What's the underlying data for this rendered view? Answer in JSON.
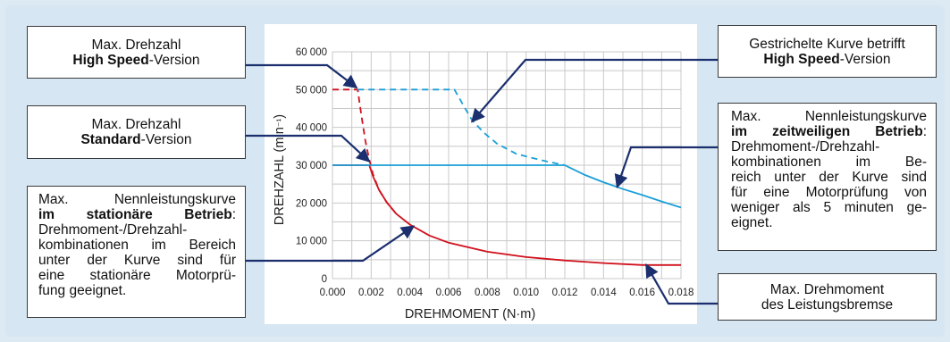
{
  "chart_data": {
    "type": "line",
    "xlabel": "DREHMOMENT (N·m)",
    "ylabel": "DREHZAHL (min⁻¹)",
    "xlim": [
      0,
      0.018
    ],
    "ylim": [
      0,
      60000
    ],
    "x_ticks": [
      "0.000",
      "0.002",
      "0.004",
      "0.006",
      "0.008",
      "0.010",
      "0.012",
      "0.014",
      "0.016",
      "0.018"
    ],
    "y_ticks": [
      "0",
      "10 000",
      "20 000",
      "30 000",
      "40 000",
      "50 000",
      "60 000"
    ],
    "grid": true,
    "series": [
      {
        "color": "#d0101c",
        "style": "solid",
        "x": [
          0,
          0.0019,
          0.0021,
          0.0024,
          0.0028,
          0.0033,
          0.004,
          0.005,
          0.006,
          0.008,
          0.01,
          0.012,
          0.014,
          0.016,
          0.018
        ],
        "y": [
          30000,
          30000,
          27000,
          23500,
          20200,
          17100,
          14300,
          11400,
          9500,
          7100,
          5700,
          4800,
          4100,
          3600,
          3600
        ]
      },
      {
        "color": "#d0101c",
        "style": "dashed",
        "x": [
          0,
          0.0013,
          0.0015,
          0.0017,
          0.0019,
          0.0021,
          0.0024,
          0.0028,
          0.0033
        ],
        "y": [
          50000,
          50000,
          43000,
          36500,
          31500,
          27500,
          23500,
          20200,
          17100
        ]
      },
      {
        "color": "#1a9fd8",
        "style": "solid",
        "x": [
          0,
          0.012,
          0.013,
          0.014,
          0.015,
          0.016,
          0.017,
          0.018
        ],
        "y": [
          30000,
          30000,
          27500,
          25500,
          23700,
          22100,
          20400,
          18800
        ]
      },
      {
        "color": "#1a9fd8",
        "style": "dashed",
        "x": [
          0.0013,
          0.0063,
          0.0068,
          0.0072,
          0.0078,
          0.0085,
          0.0095,
          0.0108,
          0.012
        ],
        "y": [
          50000,
          50000,
          45500,
          42000,
          38700,
          35700,
          33000,
          31300,
          30000
        ]
      }
    ]
  },
  "callouts": {
    "high_max": {
      "line1": "Max. Drehzahl",
      "bold": "High Speed",
      "rest": "-Version"
    },
    "std_max": {
      "line1": "Max. Drehzahl",
      "bold": "Standard",
      "rest": "-Version"
    },
    "stationary": {
      "l1": "Max. Nennleistungskurve",
      "l2b": "im stationäre Betrieb",
      "l2r": ":",
      "l3": "Drehmoment-/Drehzahl-",
      "l4": "kombinationen im Bereich",
      "l5": "unter der Kurve sind für",
      "l6": "eine stationäre Motorprü-",
      "l7": "fung geeignet."
    },
    "dashed": {
      "line1": "Gestrichelte Kurve betrifft",
      "bold": "High Speed",
      "rest": "-Version"
    },
    "temporary": {
      "l1": "Max. Nennleistungskurve",
      "l2b": "im zeitweiligen Betrieb",
      "l2r": ":",
      "l3": "Drehmoment-/Drehzahl-",
      "l4": "kombinationen im Be-",
      "l5": "reich unter der Kurve sind",
      "l6": "für eine Motorprüfung von",
      "l7": "weniger als 5 minuten ge-",
      "l8": "eignet."
    },
    "max_torque": {
      "line1": "Max. Drehmoment",
      "line2": "des Leistungsbremse"
    }
  },
  "colors": {
    "red": "#d0101c",
    "blue": "#1a9fd8",
    "leader": "#1b2f6e",
    "grid": "#c8c8c8"
  }
}
